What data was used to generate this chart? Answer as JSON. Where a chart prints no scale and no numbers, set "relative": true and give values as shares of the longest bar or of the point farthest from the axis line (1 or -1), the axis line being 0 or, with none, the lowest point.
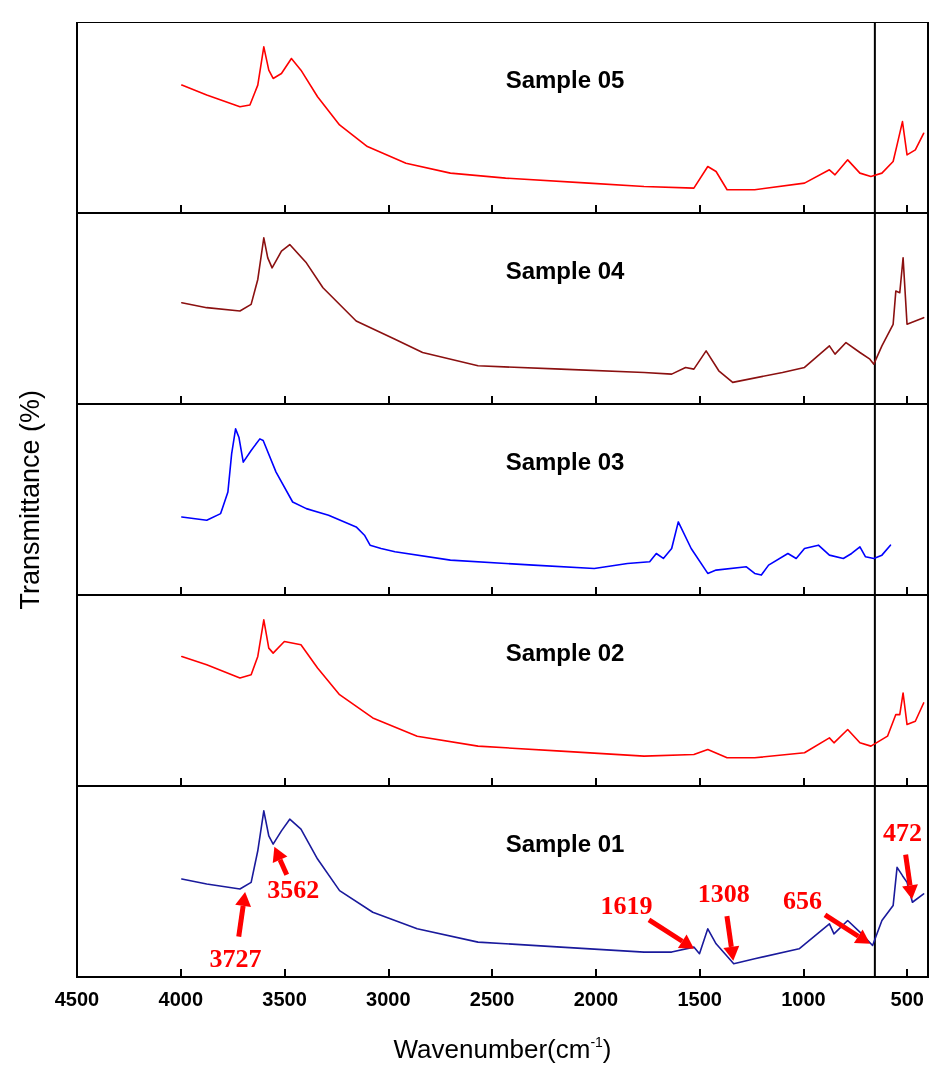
{
  "chart_data": [
    {
      "type": "line",
      "title": "Sample 05",
      "relative": true,
      "xlim": [
        4500,
        400
      ],
      "xticks": [
        4500,
        4000,
        3500,
        3000,
        2500,
        2000,
        1500,
        1000,
        500
      ],
      "tick_labels": false,
      "ref_lines": [
        {
          "axis": "x",
          "value": 656
        }
      ],
      "series": [
        {
          "color": "#ff0000",
          "x": [
            3995,
            3875,
            3715,
            3667,
            3629,
            3600,
            3576,
            3555,
            3515,
            3467,
            3421,
            3341,
            3235,
            3101,
            2915,
            2701,
            2435,
            2035,
            1768,
            1528,
            1461,
            1421,
            1368,
            1235,
            995,
            875,
            848,
            787,
            728,
            675,
            622,
            568,
            549,
            523,
            501,
            461,
            421
          ],
          "values": [
            0.77,
            0.71,
            0.64,
            0.65,
            0.77,
            1.0,
            0.86,
            0.81,
            0.84,
            0.93,
            0.86,
            0.7,
            0.53,
            0.4,
            0.3,
            0.24,
            0.21,
            0.18,
            0.16,
            0.15,
            0.28,
            0.25,
            0.14,
            0.14,
            0.18,
            0.26,
            0.23,
            0.32,
            0.24,
            0.22,
            0.24,
            0.31,
            0.41,
            0.55,
            0.35,
            0.38,
            0.48
          ]
        }
      ]
    },
    {
      "type": "line",
      "title": "Sample 04",
      "relative": true,
      "xlim": [
        4500,
        400
      ],
      "xticks": [
        4500,
        4000,
        3500,
        3000,
        2500,
        2000,
        1500,
        1000,
        500
      ],
      "tick_labels": false,
      "ref_lines": [
        {
          "axis": "x",
          "value": 656
        }
      ],
      "series": [
        {
          "color": "#8b1010",
          "x": [
            3995,
            3875,
            3715,
            3661,
            3629,
            3600,
            3581,
            3560,
            3515,
            3475,
            3395,
            3315,
            3155,
            2968,
            2835,
            2568,
            2168,
            1768,
            1635,
            1568,
            1528,
            1469,
            1408,
            1341,
            1101,
            995,
            875,
            848,
            795,
            728,
            680,
            661,
            622,
            568,
            555,
            536,
            520,
            501,
            461,
            421
          ],
          "values": [
            0.61,
            0.58,
            0.56,
            0.6,
            0.75,
            1.0,
            0.88,
            0.82,
            0.92,
            0.96,
            0.85,
            0.7,
            0.5,
            0.39,
            0.31,
            0.23,
            0.21,
            0.19,
            0.18,
            0.22,
            0.21,
            0.32,
            0.2,
            0.13,
            0.19,
            0.22,
            0.35,
            0.3,
            0.37,
            0.31,
            0.27,
            0.24,
            0.35,
            0.48,
            0.68,
            0.67,
            0.88,
            0.48,
            0.5,
            0.52
          ]
        }
      ]
    },
    {
      "type": "line",
      "title": "Sample 03",
      "ylabel": "Transmittance (%)",
      "relative": true,
      "xlim": [
        4500,
        400
      ],
      "xticks": [
        4500,
        4000,
        3500,
        3000,
        2500,
        2000,
        1500,
        1000,
        500
      ],
      "tick_labels": false,
      "ref_lines": [
        {
          "axis": "x",
          "value": 656
        }
      ],
      "series": [
        {
          "color": "#0000ff",
          "x": [
            3995,
            3875,
            3808,
            3773,
            3755,
            3736,
            3720,
            3699,
            3661,
            3619,
            3603,
            3541,
            3461,
            3395,
            3288,
            3155,
            3115,
            3088,
            3035,
            2968,
            2701,
            2301,
            2008,
            1848,
            1741,
            1709,
            1675,
            1635,
            1603,
            1541,
            1461,
            1421,
            1275,
            1235,
            1203,
            1168,
            1075,
            1035,
            995,
            928,
            875,
            808,
            768,
            728,
            701,
            661,
            622,
            581
          ],
          "values": [
            0.47,
            0.45,
            0.49,
            0.62,
            0.85,
            1.0,
            0.95,
            0.8,
            0.87,
            0.94,
            0.93,
            0.74,
            0.56,
            0.52,
            0.48,
            0.41,
            0.36,
            0.3,
            0.28,
            0.26,
            0.21,
            0.18,
            0.16,
            0.19,
            0.2,
            0.25,
            0.22,
            0.28,
            0.44,
            0.28,
            0.13,
            0.15,
            0.17,
            0.13,
            0.12,
            0.18,
            0.25,
            0.22,
            0.28,
            0.3,
            0.24,
            0.22,
            0.25,
            0.29,
            0.23,
            0.22,
            0.24,
            0.3
          ]
        }
      ]
    },
    {
      "type": "line",
      "title": "Sample 02",
      "relative": true,
      "xlim": [
        4500,
        400
      ],
      "xticks": [
        4500,
        4000,
        3500,
        3000,
        2500,
        2000,
        1500,
        1000,
        500
      ],
      "tick_labels": false,
      "ref_lines": [
        {
          "axis": "x",
          "value": 656
        }
      ],
      "series": [
        {
          "color": "#ff0000",
          "x": [
            3995,
            3875,
            3715,
            3661,
            3629,
            3600,
            3576,
            3555,
            3501,
            3421,
            3341,
            3235,
            3075,
            2861,
            2568,
            2168,
            1768,
            1528,
            1461,
            1368,
            1235,
            995,
            875,
            853,
            787,
            728,
            675,
            595,
            555,
            536,
            520,
            501,
            461,
            421
          ],
          "values": [
            0.78,
            0.73,
            0.65,
            0.67,
            0.78,
            1.0,
            0.83,
            0.8,
            0.87,
            0.85,
            0.71,
            0.55,
            0.41,
            0.3,
            0.24,
            0.21,
            0.18,
            0.19,
            0.22,
            0.17,
            0.17,
            0.2,
            0.29,
            0.26,
            0.34,
            0.26,
            0.24,
            0.3,
            0.43,
            0.43,
            0.56,
            0.37,
            0.39,
            0.5
          ]
        }
      ]
    },
    {
      "type": "line",
      "title": "Sample 01",
      "xlabel": "Wavenumber(cm$^{-1}$)",
      "relative": true,
      "xlim": [
        4500,
        400
      ],
      "xticks": [
        4500,
        4000,
        3500,
        3000,
        2500,
        2000,
        1500,
        1000,
        500
      ],
      "tick_labels": "x",
      "ref_lines": [
        {
          "axis": "x",
          "value": 656
        }
      ],
      "annotations": [
        {
          "text": "3727",
          "x": 3688,
          "y": 0.53
        },
        {
          "text": "3562",
          "x": 3555,
          "y": 0.8
        },
        {
          "text": "1619",
          "x": 1515,
          "y": 0.16
        },
        {
          "text": "1308",
          "x": 1336,
          "y": 0.08
        },
        {
          "text": "656",
          "x": 667,
          "y": 0.19
        },
        {
          "text": "472",
          "x": 475,
          "y": 0.45
        }
      ],
      "series": [
        {
          "color": "#1a1a9c",
          "x": [
            3995,
            3875,
            3715,
            3661,
            3629,
            3600,
            3576,
            3555,
            3515,
            3475,
            3421,
            3341,
            3235,
            3075,
            2861,
            2568,
            2168,
            1768,
            1635,
            1528,
            1501,
            1461,
            1421,
            1336,
            1235,
            1021,
            875,
            853,
            787,
            728,
            667,
            622,
            568,
            549,
            523,
            501,
            475,
            421
          ],
          "values": [
            0.59,
            0.56,
            0.53,
            0.57,
            0.76,
            1.0,
            0.85,
            0.8,
            0.88,
            0.95,
            0.89,
            0.71,
            0.52,
            0.39,
            0.29,
            0.21,
            0.18,
            0.15,
            0.15,
            0.18,
            0.14,
            0.29,
            0.2,
            0.08,
            0.11,
            0.17,
            0.32,
            0.26,
            0.34,
            0.27,
            0.19,
            0.34,
            0.43,
            0.66,
            0.61,
            0.57,
            0.45,
            0.5
          ]
        }
      ]
    }
  ]
}
